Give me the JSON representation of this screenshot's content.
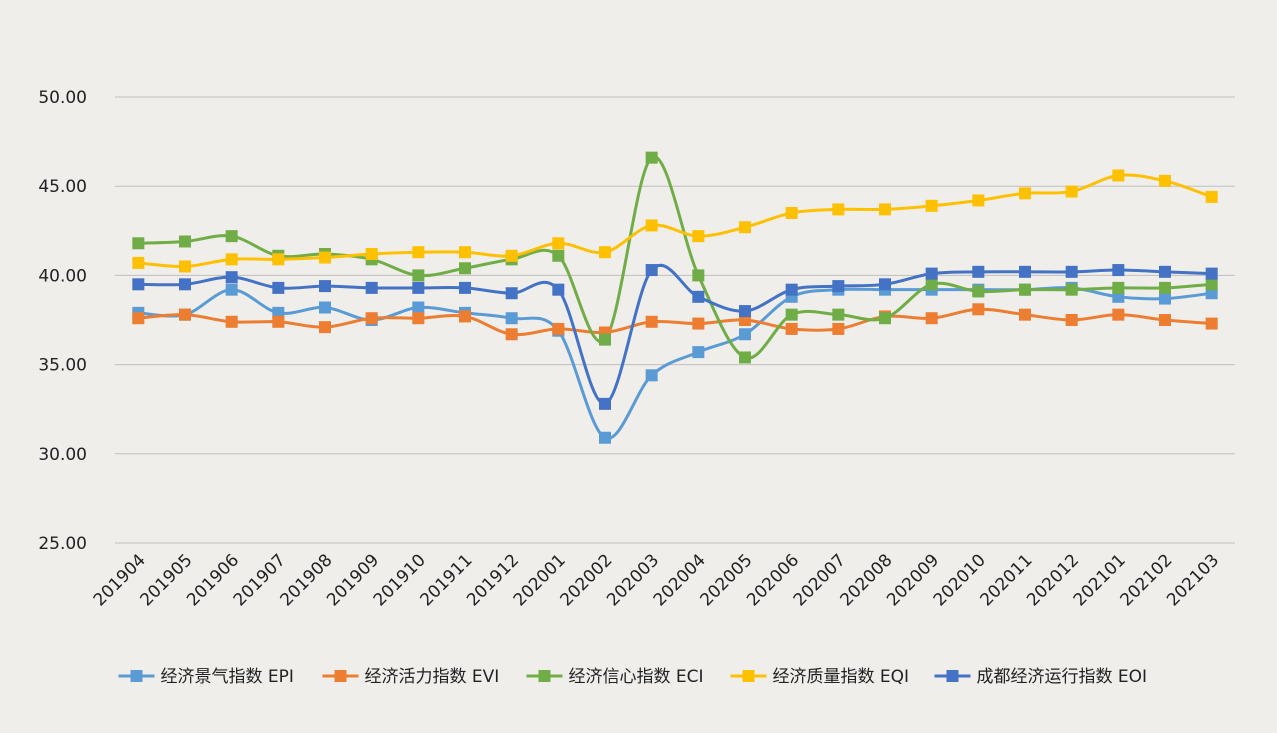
{
  "chart_data": {
    "type": "line",
    "title": "",
    "xlabel": "",
    "ylabel": "",
    "ylim": [
      25,
      50
    ],
    "y_ticks": [
      "25.00",
      "30.00",
      "35.00",
      "40.00",
      "45.00",
      "50.00"
    ],
    "grid": "horizontal",
    "legend_position": "bottom",
    "smooth": true,
    "categories": [
      "201904",
      "201905",
      "201906",
      "201907",
      "201908",
      "201909",
      "201910",
      "201911",
      "201912",
      "202001",
      "202002",
      "202003",
      "202004",
      "202005",
      "202006",
      "202007",
      "202008",
      "202009",
      "202010",
      "202011",
      "202012",
      "202101",
      "202102",
      "202103"
    ],
    "series": [
      {
        "name": "经济景气指数 EPI",
        "color": "#5b9bd5",
        "marker": "square",
        "values": [
          37.9,
          37.8,
          39.2,
          37.9,
          38.2,
          37.5,
          38.2,
          37.9,
          37.6,
          36.9,
          30.9,
          34.4,
          35.7,
          36.7,
          38.8,
          39.2,
          39.2,
          39.2,
          39.2,
          39.2,
          39.3,
          38.8,
          38.7,
          39.0
        ]
      },
      {
        "name": "经济活力指数 EVI",
        "color": "#ed7d31",
        "marker": "square",
        "values": [
          37.6,
          37.8,
          37.4,
          37.4,
          37.1,
          37.6,
          37.6,
          37.7,
          36.7,
          37.0,
          36.8,
          37.4,
          37.3,
          37.5,
          37.0,
          37.0,
          37.7,
          37.6,
          38.1,
          37.8,
          37.5,
          37.8,
          37.5,
          37.3
        ]
      },
      {
        "name": "经济信心指数 ECI",
        "color": "#70ad47",
        "marker": "square",
        "values": [
          41.8,
          41.9,
          42.2,
          41.1,
          41.2,
          40.9,
          40.0,
          40.4,
          40.9,
          41.1,
          36.4,
          46.6,
          40.0,
          35.4,
          37.8,
          37.8,
          37.6,
          39.5,
          39.1,
          39.2,
          39.2,
          39.3,
          39.3,
          39.5
        ]
      },
      {
        "name": "经济质量指数 EQI",
        "color": "#ffc000",
        "marker": "square",
        "values": [
          40.7,
          40.5,
          40.9,
          40.9,
          41.0,
          41.2,
          41.3,
          41.3,
          41.1,
          41.8,
          41.3,
          42.8,
          42.2,
          42.7,
          43.5,
          43.7,
          43.7,
          43.9,
          44.2,
          44.6,
          44.7,
          45.6,
          45.3,
          44.4
        ]
      },
      {
        "name": "成都经济运行指数 EOI",
        "color": "#4472c4",
        "marker": "square",
        "values": [
          39.5,
          39.5,
          39.9,
          39.3,
          39.4,
          39.3,
          39.3,
          39.3,
          39.0,
          39.2,
          32.8,
          40.3,
          38.8,
          38.0,
          39.2,
          39.4,
          39.5,
          40.1,
          40.2,
          40.2,
          40.2,
          40.3,
          40.2,
          40.1
        ]
      }
    ]
  }
}
